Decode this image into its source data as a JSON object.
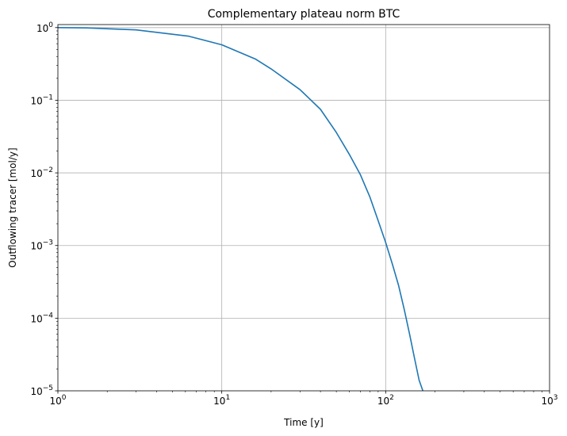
{
  "chart_data": {
    "type": "line",
    "title": "Complementary plateau norm BTC",
    "xlabel": "Time [y]",
    "ylabel": "Outflowing tracer [mol/y]",
    "xscale": "log",
    "yscale": "log",
    "xlim": [
      1,
      1000
    ],
    "ylim": [
      1e-05,
      1.1
    ],
    "grid": true,
    "x_major_ticks": [
      {
        "value": 1,
        "base": "10",
        "exp": "0"
      },
      {
        "value": 10,
        "base": "10",
        "exp": "1"
      },
      {
        "value": 100,
        "base": "10",
        "exp": "2"
      },
      {
        "value": 1000,
        "base": "10",
        "exp": "3"
      }
    ],
    "y_major_ticks": [
      {
        "value": 1e-05,
        "base": "10",
        "exp": "−5"
      },
      {
        "value": 0.0001,
        "base": "10",
        "exp": "−4"
      },
      {
        "value": 0.001,
        "base": "10",
        "exp": "−3"
      },
      {
        "value": 0.01,
        "base": "10",
        "exp": "−2"
      },
      {
        "value": 0.1,
        "base": "10",
        "exp": "−1"
      },
      {
        "value": 1,
        "base": "10",
        "exp": "0"
      }
    ],
    "series": [
      {
        "color": "#1f77b4",
        "x": [
          1,
          1.5,
          3,
          6.3,
          10,
          16,
          20,
          30,
          40,
          50,
          60,
          70,
          80,
          90,
          100,
          110,
          120,
          130,
          140,
          150,
          160,
          170
        ],
        "y": [
          1.0,
          0.99,
          0.93,
          0.76,
          0.58,
          0.37,
          0.27,
          0.14,
          0.075,
          0.036,
          0.018,
          0.0095,
          0.0047,
          0.0022,
          0.0011,
          0.00055,
          0.00028,
          0.00013,
          6e-05,
          2.8e-05,
          1.4e-05,
          9.5e-06
        ]
      }
    ]
  }
}
